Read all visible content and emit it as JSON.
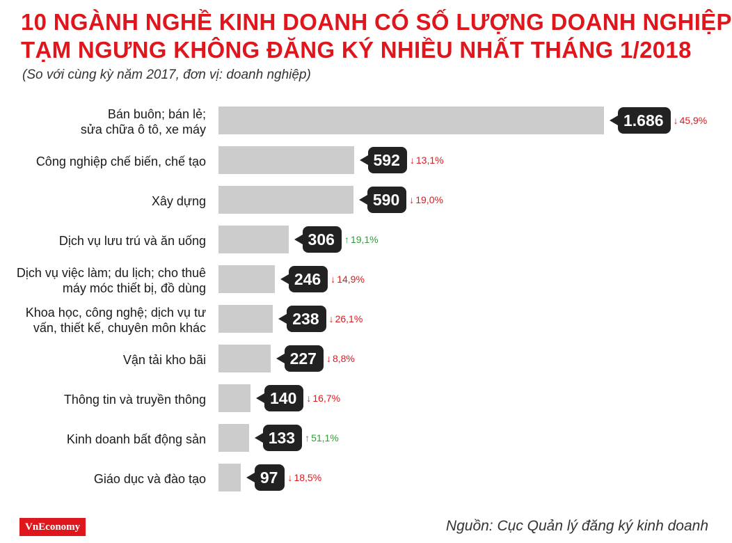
{
  "chart_data": {
    "type": "bar",
    "orientation": "horizontal",
    "title_lines": [
      "10 NGÀNH NGHỀ KINH DOANH CÓ SỐ LƯỢNG DOANH NGHIỆP",
      "TẠM NGƯNG KHÔNG ĐĂNG KÝ NHIỀU NHẤT THÁNG 1/2018"
    ],
    "subtitle": "(So với cùng kỳ năm 2017, đơn vị: doanh nghiệp)",
    "categories": [
      [
        "Bán buôn; bán lẻ;",
        "sửa chữa ô tô, xe máy"
      ],
      [
        "Công nghiệp chế biến, chế tạo"
      ],
      [
        "Xây dựng"
      ],
      [
        "Dịch vụ lưu trú và ăn uống"
      ],
      [
        "Dịch vụ việc làm; du lịch; cho thuê",
        "máy móc thiết bị, đồ dùng"
      ],
      [
        "Khoa học, công nghệ; dịch vụ tư",
        "vấn, thiết kế, chuyên môn khác"
      ],
      [
        "Vận tải kho bãi"
      ],
      [
        "Thông tin và truyền thông"
      ],
      [
        "Kinh doanh bất động sản"
      ],
      [
        "Giáo dục và đào tạo"
      ]
    ],
    "values": [
      1686,
      592,
      590,
      306,
      246,
      238,
      227,
      140,
      133,
      97
    ],
    "value_labels": [
      "1.686",
      "592",
      "590",
      "306",
      "246",
      "238",
      "227",
      "140",
      "133",
      "97"
    ],
    "changes": [
      {
        "dir": "down",
        "text": "45,9%"
      },
      {
        "dir": "down",
        "text": "13,1%"
      },
      {
        "dir": "down",
        "text": "19,0%"
      },
      {
        "dir": "up",
        "text": "19,1%"
      },
      {
        "dir": "down",
        "text": "14,9%"
      },
      {
        "dir": "down",
        "text": "26,1%"
      },
      {
        "dir": "down",
        "text": "8,8%"
      },
      {
        "dir": "down",
        "text": "16,7%"
      },
      {
        "dir": "up",
        "text": "51,1%"
      },
      {
        "dir": "down",
        "text": "18,5%"
      }
    ],
    "xlim": [
      0,
      1686
    ],
    "grid": false,
    "legend": "none"
  },
  "colors": {
    "bar": "#cccccc",
    "bubble": "#222222",
    "down": "#e0161d",
    "up": "#2e9e3a",
    "title": "#e0161d"
  },
  "icons": {
    "down": "arrow-down-icon",
    "up": "arrow-up-icon"
  },
  "footer": {
    "logo": "VnEconomy",
    "source": "Nguồn: Cục Quản lý đăng ký kinh doanh"
  }
}
